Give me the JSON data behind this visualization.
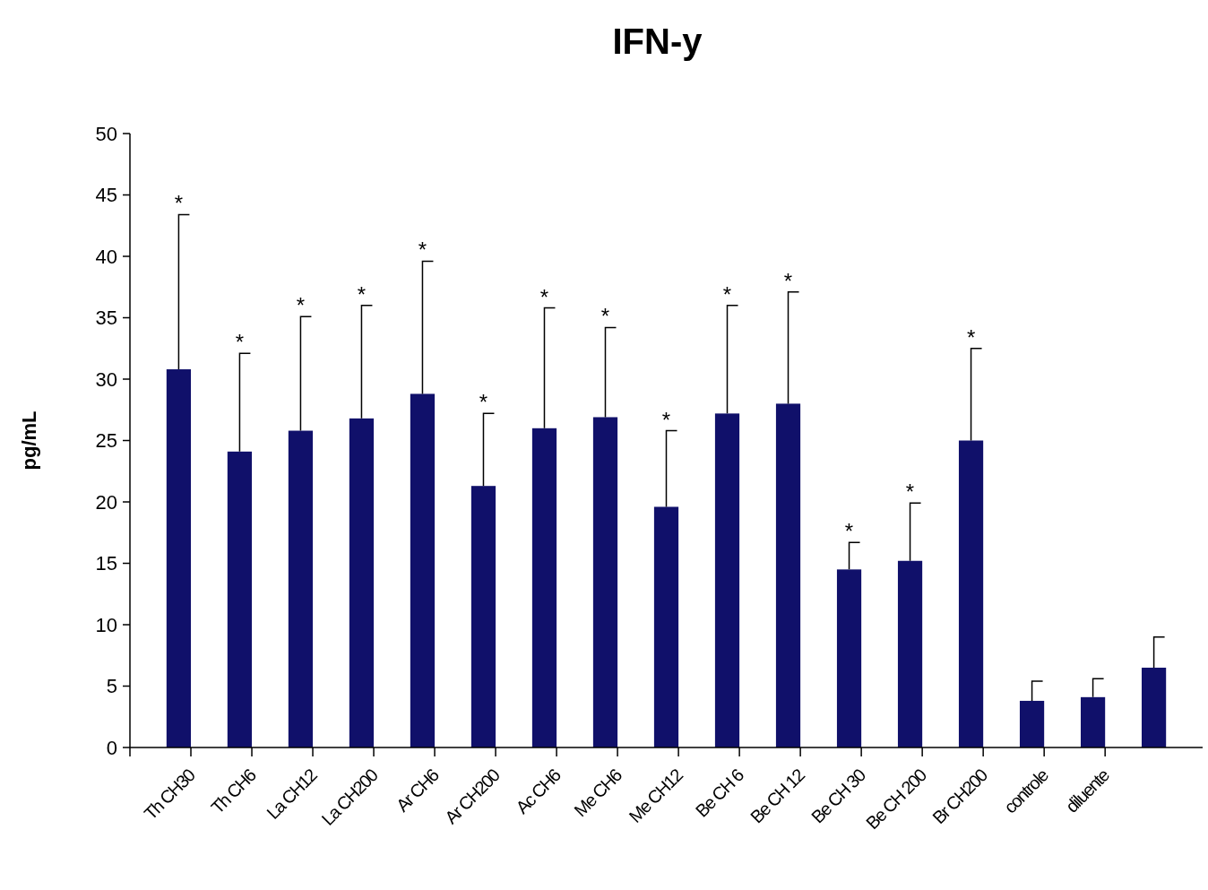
{
  "chart_data": {
    "type": "bar",
    "title": "IFN-y",
    "ylabel": "pg/mL",
    "categories": [
      "Th CH30",
      "Th CH6",
      "La CH12",
      "La CH200",
      "Ar CH6",
      "Ar CH200",
      "Ac CH6",
      "Me CH6",
      "Me CH12",
      "Be CH 6",
      "Be CH 12",
      "Be CH 30",
      "Be CH 200",
      "Br CH200",
      "controle",
      "diluente",
      null
    ],
    "values": [
      30.8,
      24.1,
      25.8,
      26.8,
      28.8,
      21.3,
      26.0,
      26.9,
      19.6,
      27.2,
      28.0,
      14.5,
      15.2,
      25.0,
      3.8,
      4.1,
      6.5
    ],
    "errors": [
      [
        30.8,
        43.4
      ],
      [
        24.1,
        32.1
      ],
      [
        25.8,
        35.1
      ],
      [
        26.8,
        36.0
      ],
      [
        28.8,
        39.6
      ],
      [
        21.3,
        27.2
      ],
      [
        26.0,
        35.8
      ],
      [
        26.9,
        34.2
      ],
      [
        19.6,
        25.8
      ],
      [
        27.2,
        36.0
      ],
      [
        28.0,
        37.1
      ],
      [
        14.5,
        16.7
      ],
      [
        15.2,
        19.9
      ],
      [
        25.0,
        32.5
      ],
      [
        3.8,
        5.4
      ],
      [
        4.1,
        5.6
      ],
      [
        6.5,
        9.0
      ]
    ],
    "color": "#10106a",
    "ylim": [
      0,
      50
    ],
    "yticks": [
      0,
      5,
      10,
      15,
      20,
      25,
      30,
      35,
      40,
      45,
      50
    ],
    "grid": false,
    "legend": false,
    "annotations": [
      "*",
      "*",
      "*",
      "*",
      "*",
      "*",
      "*",
      "*",
      "*",
      "*",
      "*",
      "*",
      "*",
      "*"
    ]
  }
}
